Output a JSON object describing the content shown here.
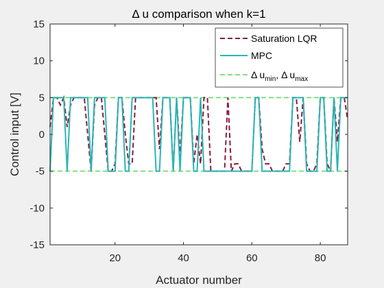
{
  "chart_data": {
    "type": "line",
    "title": "Δ u comparison when k=1",
    "xlabel": "Actuator number",
    "ylabel": "Control input [V]",
    "xlim": [
      1,
      88
    ],
    "ylim": [
      -15,
      15
    ],
    "xticks": [
      20,
      40,
      60,
      80
    ],
    "yticks": [
      -15,
      -10,
      -5,
      0,
      5,
      10,
      15
    ],
    "grid": false,
    "legend_position": "top-right",
    "legend": {
      "delta_symbol": "Δ",
      "u": "u",
      "min_sub": "min",
      "max_sub": "max",
      "separator": ", "
    },
    "colors": {
      "lqr": "#8b1a3a",
      "mpc": "#2ab5b5",
      "bounds": "#7fe07f"
    },
    "series": [
      {
        "name": "Saturation LQR",
        "style": "dashed",
        "x": [
          1,
          2,
          3,
          4,
          5,
          6,
          7,
          8,
          9,
          10,
          11,
          12,
          13,
          14,
          15,
          16,
          17,
          18,
          19,
          20,
          21,
          22,
          23,
          24,
          25,
          26,
          27,
          28,
          29,
          30,
          31,
          32,
          33,
          34,
          35,
          36,
          37,
          38,
          39,
          40,
          41,
          42,
          43,
          44,
          45,
          46,
          47,
          48,
          49,
          50,
          51,
          52,
          53,
          54,
          55,
          56,
          57,
          58,
          59,
          60,
          61,
          62,
          63,
          64,
          65,
          66,
          67,
          68,
          69,
          70,
          71,
          72,
          73,
          74,
          75,
          76,
          77,
          78,
          79,
          80,
          81,
          82,
          83,
          84,
          85,
          86,
          87,
          88
        ],
        "y": [
          1,
          5,
          5,
          4,
          5,
          1,
          4,
          5,
          5,
          5,
          5,
          0,
          -5,
          4,
          5,
          5,
          0,
          -5,
          -5,
          -4,
          5,
          5,
          0,
          -4,
          -4,
          5,
          5,
          5,
          5,
          5,
          5,
          5,
          -2,
          5,
          5,
          5,
          -5,
          5,
          -3,
          5,
          5,
          5,
          -4,
          0,
          -4,
          5,
          5,
          -5,
          -5,
          -5,
          -5,
          -5,
          5,
          -5,
          -4,
          -4,
          -5,
          -5,
          -5,
          -5,
          5,
          5,
          -2,
          -4,
          -4,
          -5,
          -5,
          -5,
          -5,
          -4,
          -4,
          5,
          5,
          -1,
          5,
          -4,
          -5,
          -5,
          -4,
          5,
          5,
          -4,
          -5,
          5,
          -1,
          5,
          5,
          2
        ]
      },
      {
        "name": "MPC",
        "style": "solid",
        "x": [
          1,
          2,
          3,
          4,
          5,
          6,
          7,
          8,
          9,
          10,
          11,
          12,
          13,
          14,
          15,
          16,
          17,
          18,
          19,
          20,
          21,
          22,
          23,
          24,
          25,
          26,
          27,
          28,
          29,
          30,
          31,
          32,
          33,
          34,
          35,
          36,
          37,
          38,
          39,
          40,
          41,
          42,
          43,
          44,
          45,
          46,
          47,
          48,
          49,
          50,
          51,
          52,
          53,
          54,
          55,
          56,
          57,
          58,
          59,
          60,
          61,
          62,
          63,
          64,
          65,
          66,
          67,
          68,
          69,
          70,
          71,
          72,
          73,
          74,
          75,
          76,
          77,
          78,
          79,
          80,
          81,
          82,
          83,
          84,
          85,
          86,
          87,
          88
        ],
        "y": [
          -5,
          5,
          5,
          5,
          5,
          -5,
          5,
          5,
          5,
          5,
          5,
          5,
          -5,
          5,
          5,
          5,
          5,
          -5,
          -5,
          -5,
          5,
          5,
          -5,
          -5,
          5,
          5,
          5,
          5,
          5,
          5,
          5,
          -5,
          -5,
          5,
          5,
          5,
          -5,
          5,
          -5,
          5,
          5,
          5,
          -5,
          -5,
          5,
          -5,
          -5,
          -5,
          -5,
          -5,
          -5,
          -5,
          -5,
          -5,
          -5,
          -5,
          -5,
          -5,
          -5,
          -5,
          5,
          5,
          -5,
          -5,
          -5,
          -5,
          -5,
          -5,
          -5,
          -5,
          -5,
          5,
          5,
          5,
          5,
          -5,
          -5,
          -5,
          -5,
          5,
          5,
          -5,
          -5,
          5,
          -5,
          5,
          5,
          5
        ]
      },
      {
        "name": "bounds",
        "style": "dashed",
        "values": [
          -5,
          5
        ]
      }
    ]
  }
}
